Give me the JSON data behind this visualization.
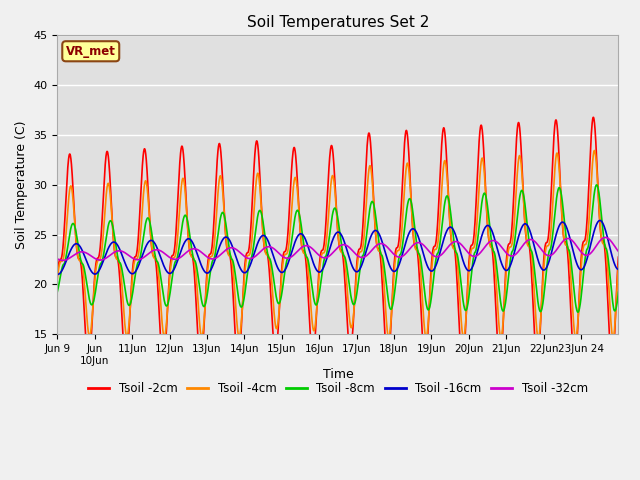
{
  "title": "Soil Temperatures Set 2",
  "xlabel": "Time",
  "ylabel": "Soil Temperature (C)",
  "ylim": [
    15,
    45
  ],
  "yticks": [
    15,
    20,
    25,
    30,
    35,
    40,
    45
  ],
  "colors": {
    "Tsoil -2cm": "#ff0000",
    "Tsoil -4cm": "#ff8800",
    "Tsoil -8cm": "#00cc00",
    "Tsoil -16cm": "#0000cc",
    "Tsoil -32cm": "#cc00cc"
  },
  "annotation_text": "VR_met",
  "line_width": 1.2,
  "n_days": 15,
  "n_per_day": 144
}
